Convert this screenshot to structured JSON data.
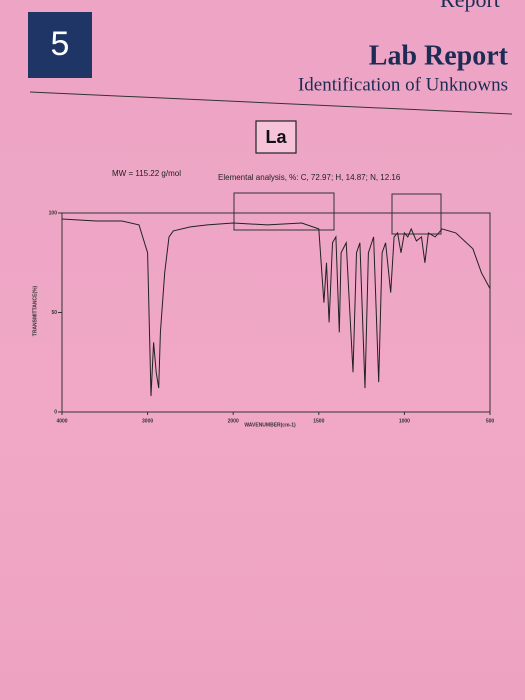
{
  "header": {
    "corner": "Report",
    "page_number": "5",
    "title": "Lab Report",
    "subtitle": "Identification of Unknowns"
  },
  "compound": {
    "label": "La",
    "mw": "MW = 115.22 g/mol",
    "elemental": "Elemental analysis, %: C, 72.97; H, 14.87; N, 12.16"
  },
  "chart_data": {
    "type": "line",
    "ylabel": "TRANSMITTANCE(%)",
    "xlabel": "WAVENUMBER(cm-1)",
    "x": [
      4000,
      3600,
      3300,
      3100,
      3000,
      2960,
      2930,
      2900,
      2870,
      2850,
      2800,
      2750,
      2700,
      2500,
      2300,
      2000,
      1800,
      1600,
      1500,
      1470,
      1455,
      1440,
      1420,
      1400,
      1380,
      1370,
      1340,
      1300,
      1280,
      1260,
      1230,
      1210,
      1180,
      1150,
      1130,
      1110,
      1080,
      1060,
      1040,
      1020,
      1000,
      980,
      960,
      930,
      900,
      880,
      860,
      820,
      780,
      700,
      600,
      550,
      500
    ],
    "values": [
      97,
      96,
      96,
      94,
      80,
      8,
      35,
      20,
      12,
      40,
      70,
      88,
      91,
      93,
      94,
      95,
      94,
      95,
      92,
      55,
      75,
      45,
      85,
      88,
      40,
      80,
      85,
      20,
      80,
      85,
      12,
      80,
      88,
      15,
      80,
      85,
      60,
      88,
      90,
      80,
      90,
      88,
      92,
      86,
      88,
      75,
      90,
      88,
      92,
      90,
      82,
      70,
      62
    ],
    "color": "#222",
    "xlim": [
      4000,
      500
    ],
    "ylim": [
      0,
      100
    ],
    "xticks": [
      4000,
      3000,
      2000,
      1500,
      1000,
      500
    ],
    "yticks": [
      0,
      50,
      100
    ]
  }
}
